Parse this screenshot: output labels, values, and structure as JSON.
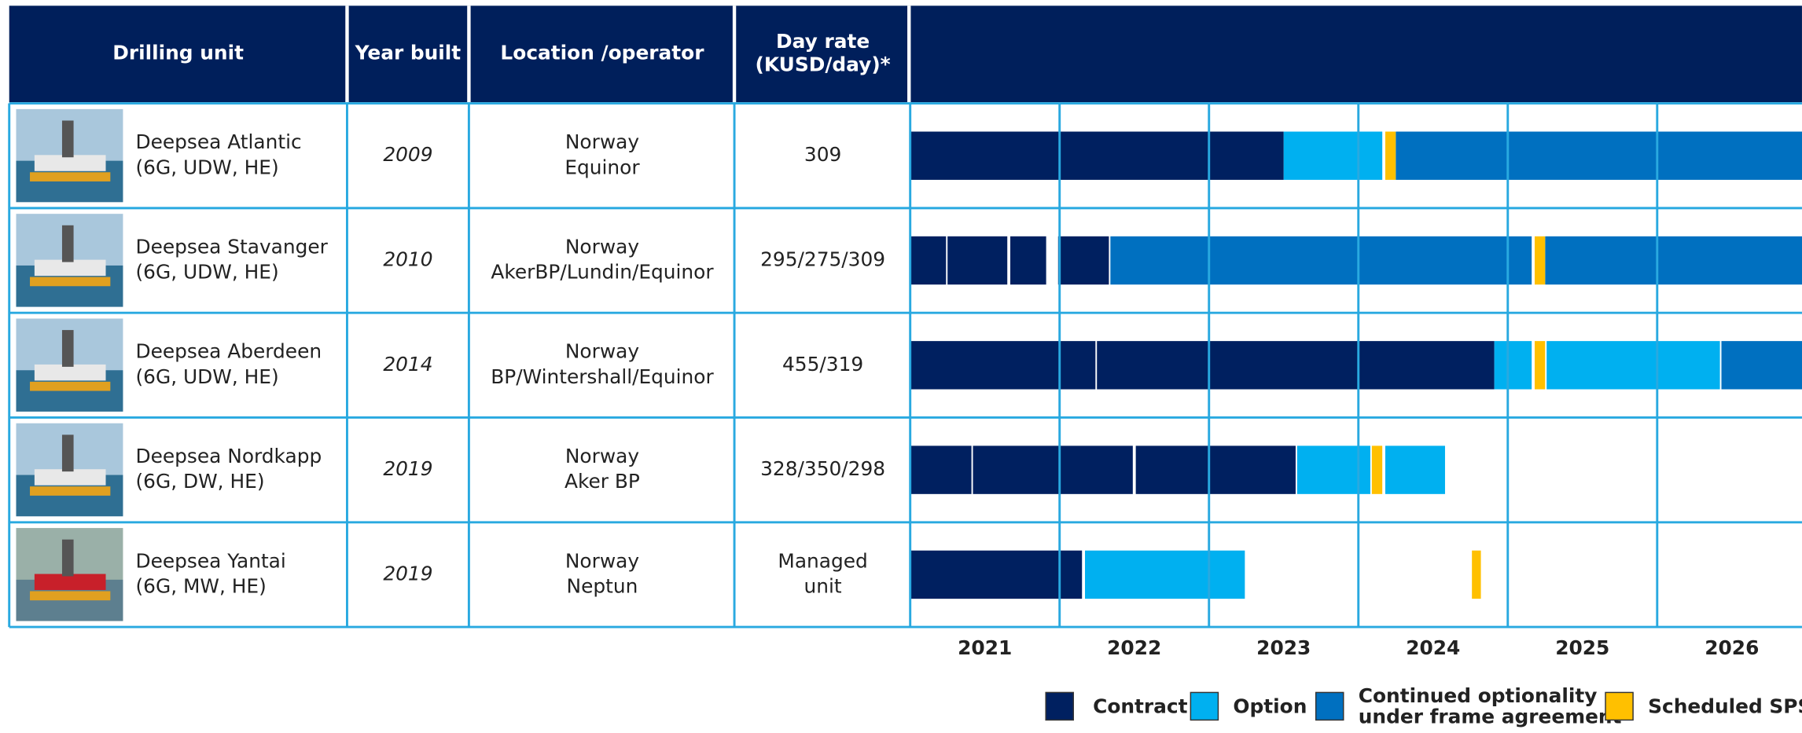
{
  "table": {
    "headers": {
      "unit": "Drilling unit",
      "year": "Year built",
      "location": "Location /operator",
      "rate": [
        "Day rate",
        "(KUSD/day)*"
      ]
    },
    "rows": [
      {
        "name": "Deepsea Atlantic",
        "spec": "(6G, UDW, HE)",
        "year": "2009",
        "location": "Norway",
        "operator": "Equinor",
        "rate": [
          "309"
        ]
      },
      {
        "name": "Deepsea Stavanger",
        "spec": "(6G, UDW, HE)",
        "year": "2010",
        "location": "Norway",
        "operator": "AkerBP/Lundin/Equinor",
        "rate": [
          "295/275/309"
        ]
      },
      {
        "name": "Deepsea Aberdeen",
        "spec": "(6G, UDW, HE)",
        "year": "2014",
        "location": "Norway",
        "operator": "BP/Wintershall/Equinor",
        "rate": [
          "455/319"
        ]
      },
      {
        "name": "Deepsea Nordkapp",
        "spec": "(6G, DW, HE)",
        "year": "2019",
        "location": "Norway",
        "operator": "Aker BP",
        "rate": [
          "328/350/298"
        ]
      },
      {
        "name": "Deepsea Yantai",
        "spec": "(6G, MW, HE)",
        "year": "2019",
        "location": "Norway",
        "operator": "Neptun",
        "rate": [
          "Managed",
          "unit"
        ]
      }
    ]
  },
  "timeline": {
    "xlim": [
      2021,
      2027
    ],
    "xticks": [
      2021,
      2022,
      2023,
      2024,
      2025,
      2026
    ],
    "series": [
      {
        "name": [
          "Contract"
        ],
        "color": "#002060",
        "bars": [
          [
            [
              2021,
              2023.5
            ]
          ],
          [
            [
              2021,
              2021.24
            ],
            [
              2021.25,
              2021.65
            ],
            [
              2021.67,
              2021.91
            ],
            [
              2021.99,
              2022.33
            ]
          ],
          [
            [
              2021,
              2022.24
            ],
            [
              2022.25,
              2024.91
            ]
          ],
          [
            [
              2021,
              2021.41
            ],
            [
              2021.42,
              2022.49
            ],
            [
              2022.51,
              2023.58
            ]
          ],
          [
            [
              2021,
              2022.15
            ]
          ]
        ]
      },
      {
        "name": [
          "Option"
        ],
        "color": "#00b0f0",
        "bars": [
          [
            [
              2023.5,
              2024.16
            ]
          ],
          [],
          [
            [
              2024.91,
              2025.16
            ],
            [
              2025.26,
              2026.42
            ]
          ],
          [
            [
              2023.59,
              2024.08
            ],
            [
              2024.18,
              2024.58
            ]
          ],
          [
            [
              2022.17,
              2023.24
            ]
          ]
        ]
      },
      {
        "name": [
          "Continued optionality",
          "under frame agreement"
        ],
        "color": "#0070c0",
        "bars": [
          [
            [
              2024.25,
              2027
            ]
          ],
          [
            [
              2022.34,
              2025.16
            ],
            [
              2025.25,
              2027
            ]
          ],
          [
            [
              2026.43,
              2027
            ]
          ],
          [],
          []
        ]
      },
      {
        "name": [
          "Scheduled SPS"
        ],
        "color": "#ffc000",
        "bars": [
          [
            [
              2024.18,
              2024.25
            ]
          ],
          [
            [
              2025.18,
              2025.25
            ]
          ],
          [
            [
              2025.18,
              2025.25
            ]
          ],
          [
            [
              2024.09,
              2024.16
            ]
          ],
          [
            [
              2024.76,
              2024.82
            ]
          ]
        ]
      }
    ]
  }
}
